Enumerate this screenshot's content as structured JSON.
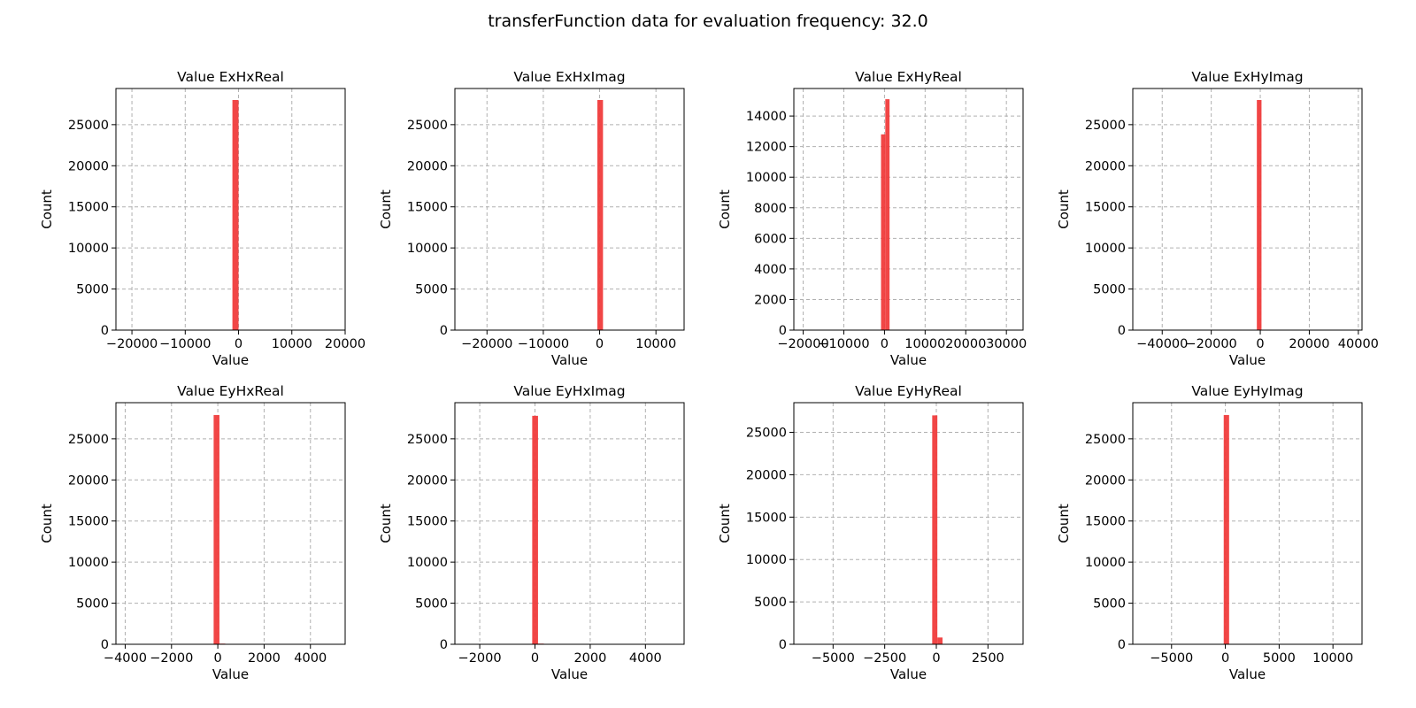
{
  "figure": {
    "title": "transferFunction data for evaluation frequency: 32.0",
    "bar_color": "#f03c3c"
  },
  "chart_data": [
    {
      "type": "bar",
      "title": "Value ExHxReal",
      "xlabel": "Value",
      "ylabel": "Count",
      "xlim": [
        -23000,
        20000
      ],
      "ylim": [
        0,
        29400
      ],
      "xticks": [
        -20000,
        -10000,
        0,
        10000,
        20000
      ],
      "xtick_labels": [
        "−20000",
        "−10000",
        "0",
        "10000",
        "20000"
      ],
      "yticks": [
        0,
        5000,
        10000,
        15000,
        20000,
        25000
      ],
      "bars": [
        {
          "x0": -1150,
          "x1": 0,
          "count": 28000
        }
      ]
    },
    {
      "type": "bar",
      "title": "Value ExHxImag",
      "xlabel": "Value",
      "ylabel": "Count",
      "xlim": [
        -25700,
        15000
      ],
      "ylim": [
        0,
        29400
      ],
      "xticks": [
        -20000,
        -10000,
        0,
        10000
      ],
      "xtick_labels": [
        "−20000",
        "−10000",
        "0",
        "10000"
      ],
      "yticks": [
        0,
        5000,
        10000,
        15000,
        20000,
        25000
      ],
      "bars": [
        {
          "x0": -400,
          "x1": 600,
          "count": 28000
        }
      ]
    },
    {
      "type": "bar",
      "title": "Value ExHyReal",
      "xlabel": "Value",
      "ylabel": "Count",
      "xlim": [
        -22300,
        34100
      ],
      "ylim": [
        0,
        15800
      ],
      "xticks": [
        -20000,
        -10000,
        0,
        10000,
        20000,
        30000
      ],
      "xtick_labels": [
        "−20000",
        "−10000",
        "0",
        "10000",
        "20000",
        "30000"
      ],
      "yticks": [
        0,
        2000,
        4000,
        6000,
        8000,
        10000,
        12000,
        14000
      ],
      "bars": [
        {
          "x0": -850,
          "x1": 200,
          "count": 12800
        },
        {
          "x0": 200,
          "x1": 1250,
          "count": 15100
        }
      ]
    },
    {
      "type": "bar",
      "title": "Value ExHyImag",
      "xlabel": "Value",
      "ylabel": "Count",
      "xlim": [
        -52000,
        41500
      ],
      "ylim": [
        0,
        29400
      ],
      "xticks": [
        -40000,
        -20000,
        0,
        20000,
        40000
      ],
      "xtick_labels": [
        "−40000",
        "−20000",
        "0",
        "20000",
        "40000"
      ],
      "yticks": [
        0,
        5000,
        10000,
        15000,
        20000,
        25000
      ],
      "bars": [
        {
          "x0": -1400,
          "x1": 500,
          "count": 28000
        }
      ]
    },
    {
      "type": "bar",
      "title": "Value EyHxReal",
      "xlabel": "Value",
      "ylabel": "Count",
      "xlim": [
        -4400,
        5500
      ],
      "ylim": [
        0,
        29400
      ],
      "xticks": [
        -4000,
        -2000,
        0,
        2000,
        4000
      ],
      "xtick_labels": [
        "−4000",
        "−2000",
        "0",
        "2000",
        "4000"
      ],
      "yticks": [
        0,
        5000,
        10000,
        15000,
        20000,
        25000
      ],
      "bars": [
        {
          "x0": -180,
          "x1": 70,
          "count": 27900
        },
        {
          "x0": 70,
          "x1": 320,
          "count": 80
        }
      ]
    },
    {
      "type": "bar",
      "title": "Value EyHxImag",
      "xlabel": "Value",
      "ylabel": "Count",
      "xlim": [
        -2900,
        5400
      ],
      "ylim": [
        0,
        29400
      ],
      "xticks": [
        -2000,
        0,
        2000,
        4000
      ],
      "xtick_labels": [
        "−2000",
        "0",
        "2000",
        "4000"
      ],
      "yticks": [
        0,
        5000,
        10000,
        15000,
        20000,
        25000
      ],
      "bars": [
        {
          "x0": -100,
          "x1": 110,
          "count": 27800
        },
        {
          "x0": 110,
          "x1": 320,
          "count": 80
        }
      ]
    },
    {
      "type": "bar",
      "title": "Value EyHyReal",
      "xlabel": "Value",
      "ylabel": "Count",
      "xlim": [
        -6900,
        4200
      ],
      "ylim": [
        0,
        28500
      ],
      "xticks": [
        -5000,
        -2500,
        0,
        2500
      ],
      "xtick_labels": [
        "−5000",
        "−2500",
        "0",
        "2500"
      ],
      "yticks": [
        0,
        5000,
        10000,
        15000,
        20000,
        25000
      ],
      "bars": [
        {
          "x0": -200,
          "x1": 50,
          "count": 27000
        },
        {
          "x0": 50,
          "x1": 300,
          "count": 800
        }
      ]
    },
    {
      "type": "bar",
      "title": "Value EyHyImag",
      "xlabel": "Value",
      "ylabel": "Count",
      "xlim": [
        -8600,
        12700
      ],
      "ylim": [
        0,
        29400
      ],
      "xticks": [
        -5000,
        0,
        5000,
        10000
      ],
      "xtick_labels": [
        "−5000",
        "0",
        "5000",
        "10000"
      ],
      "yticks": [
        0,
        5000,
        10000,
        15000,
        20000,
        25000
      ],
      "bars": [
        {
          "x0": -150,
          "x1": 350,
          "count": 27900
        }
      ]
    }
  ]
}
